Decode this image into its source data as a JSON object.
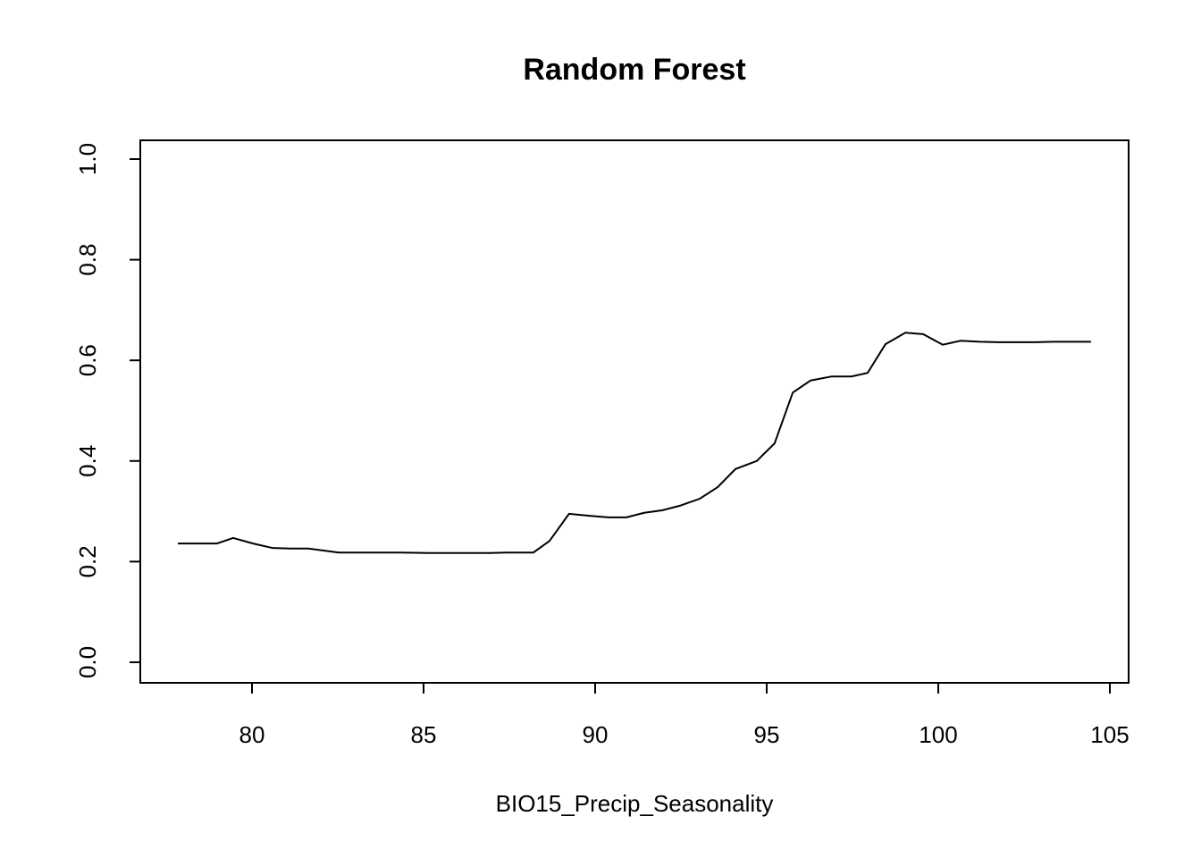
{
  "chart_data": {
    "type": "line",
    "title": "Random Forest",
    "x_label": "BIO15_Precip_Seasonality",
    "x": [
      77.84,
      78.98,
      79.45,
      80.03,
      80.6,
      81.12,
      81.64,
      82.53,
      83.46,
      84.3,
      85.18,
      86.07,
      86.95,
      87.42,
      88.2,
      88.67,
      89.24,
      89.84,
      90.39,
      90.91,
      91.43,
      91.95,
      92.47,
      93.05,
      93.57,
      94.09,
      94.71,
      95.23,
      95.76,
      96.28,
      96.9,
      97.47,
      97.94,
      98.46,
      99.04,
      99.56,
      100.13,
      100.65,
      101.22,
      101.74,
      102.84,
      103.36,
      104.45
    ],
    "values": [
      0.236,
      0.236,
      0.247,
      0.236,
      0.227,
      0.226,
      0.226,
      0.218,
      0.218,
      0.218,
      0.217,
      0.217,
      0.217,
      0.218,
      0.218,
      0.241,
      0.295,
      0.291,
      0.288,
      0.288,
      0.297,
      0.302,
      0.311,
      0.325,
      0.348,
      0.384,
      0.4,
      0.435,
      0.536,
      0.56,
      0.568,
      0.568,
      0.575,
      0.632,
      0.655,
      0.652,
      0.631,
      0.639,
      0.637,
      0.636,
      0.636,
      0.637,
      0.637
    ],
    "color": "#000000",
    "xlim": [
      76.745,
      105.547
    ],
    "xticks": [
      80,
      85,
      90,
      95,
      100,
      105
    ],
    "ylim": [
      -0.0409,
      1.0373
    ],
    "yticks": [
      {
        "value": 0,
        "label": "0.0"
      },
      0.2,
      0.4,
      0.6,
      0.8,
      {
        "value": 1,
        "label": "1.0"
      }
    ]
  }
}
